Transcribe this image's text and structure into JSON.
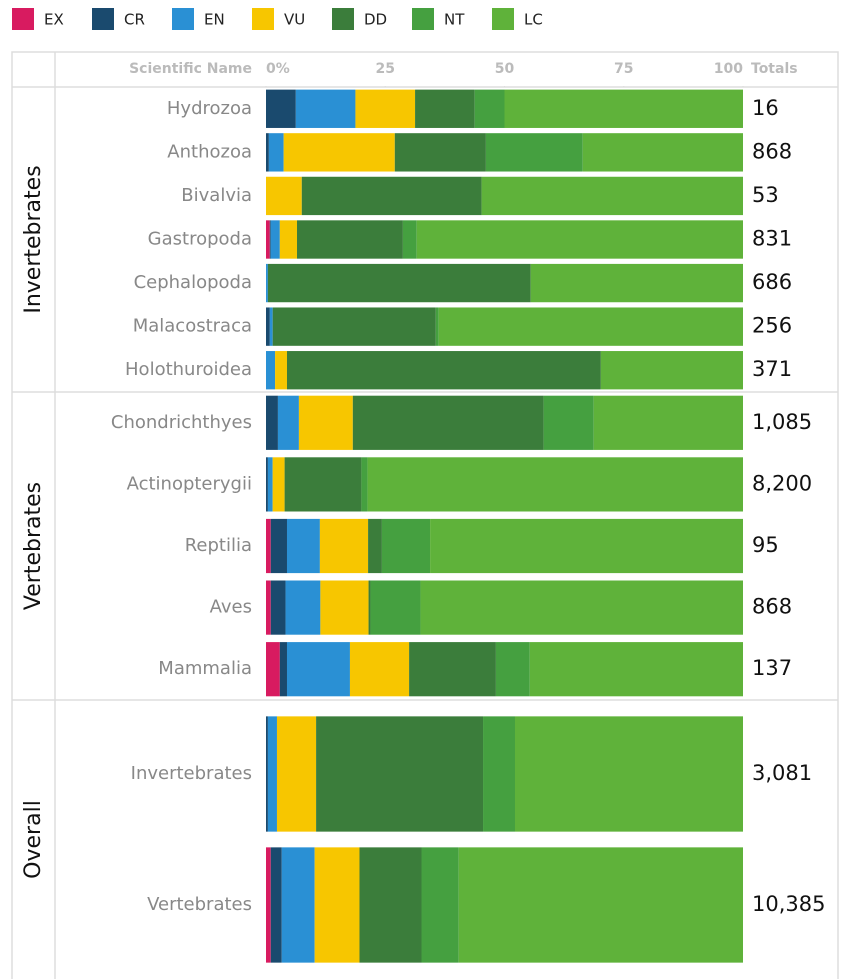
{
  "chart_data": {
    "type": "bar",
    "orientation": "horizontal",
    "stacked": true,
    "category_header": "Scientific Name",
    "groups": [
      {
        "name": "Invertebrates",
        "categories": [
          "Hydrozoa",
          "Anthozoa",
          "Bivalvia",
          "Gastropoda",
          "Cephalopoda",
          "Malacostraca",
          "Holothuroidea"
        ]
      },
      {
        "name": "Vertebrates",
        "categories": [
          "Chondrichthyes",
          "Actinopterygii",
          "Reptilia",
          "Aves",
          "Mammalia"
        ]
      },
      {
        "name": "Overall",
        "categories": [
          "Invertebrates",
          "Vertebrates"
        ]
      }
    ],
    "xlim": [
      0,
      100
    ],
    "xticks": [
      {
        "value": 0,
        "label": "0%"
      },
      25,
      50,
      75,
      100
    ],
    "series": [
      {
        "name": "EX",
        "color": "#d81b60",
        "values": [
          0,
          0,
          0,
          0.8,
          0,
          0,
          0,
          0,
          0,
          1.0,
          1.0,
          2.9,
          0,
          1.0
        ]
      },
      {
        "name": "CR",
        "color": "#1a4a6e",
        "values": [
          6.25,
          0.6,
          0,
          0.2,
          0,
          0.8,
          0,
          2.5,
          0.4,
          3.4,
          3.1,
          1.5,
          0.4,
          2.3
        ]
      },
      {
        "name": "EN",
        "color": "#2a90d4",
        "values": [
          12.5,
          3.1,
          0,
          1.9,
          0.4,
          0.6,
          1.9,
          4.4,
          1.0,
          6.9,
          7.3,
          13.2,
          1.9,
          6.9
        ]
      },
      {
        "name": "VU",
        "color": "#f7c600",
        "values": [
          12.5,
          23.3,
          7.5,
          3.6,
          0,
          0,
          2.5,
          11.3,
          2.5,
          10.1,
          10.1,
          12.4,
          8.2,
          9.4
        ]
      },
      {
        "name": "DD",
        "color": "#3b7d3b",
        "values": [
          12.5,
          19.1,
          37.7,
          22.2,
          55.1,
          34.2,
          65.8,
          40.0,
          16.1,
          2.9,
          0.4,
          18.2,
          35.0,
          13.0
        ]
      },
      {
        "name": "NT",
        "color": "#45a040",
        "values": [
          6.25,
          20.3,
          0,
          2.9,
          0,
          0.6,
          0,
          10.5,
          1.3,
          10.1,
          10.5,
          7.1,
          6.7,
          7.8
        ]
      },
      {
        "name": "LC",
        "color": "#5fb23a",
        "values": [
          50,
          33.6,
          54.8,
          68.4,
          44.5,
          63.8,
          29.8,
          31.3,
          78.7,
          65.6,
          67.6,
          44.7,
          47.8,
          59.6
        ]
      }
    ],
    "totals": {
      "name": "Totals",
      "values": [
        16,
        868,
        53,
        831,
        686,
        256,
        371,
        1085,
        8200,
        95,
        868,
        137,
        3081,
        10385
      ],
      "value_labels": [
        "16",
        "868",
        "53",
        "831",
        "686",
        "256",
        "371",
        "1,085",
        "8,200",
        "95",
        "868",
        "137",
        "3,081",
        "10,385"
      ]
    }
  }
}
